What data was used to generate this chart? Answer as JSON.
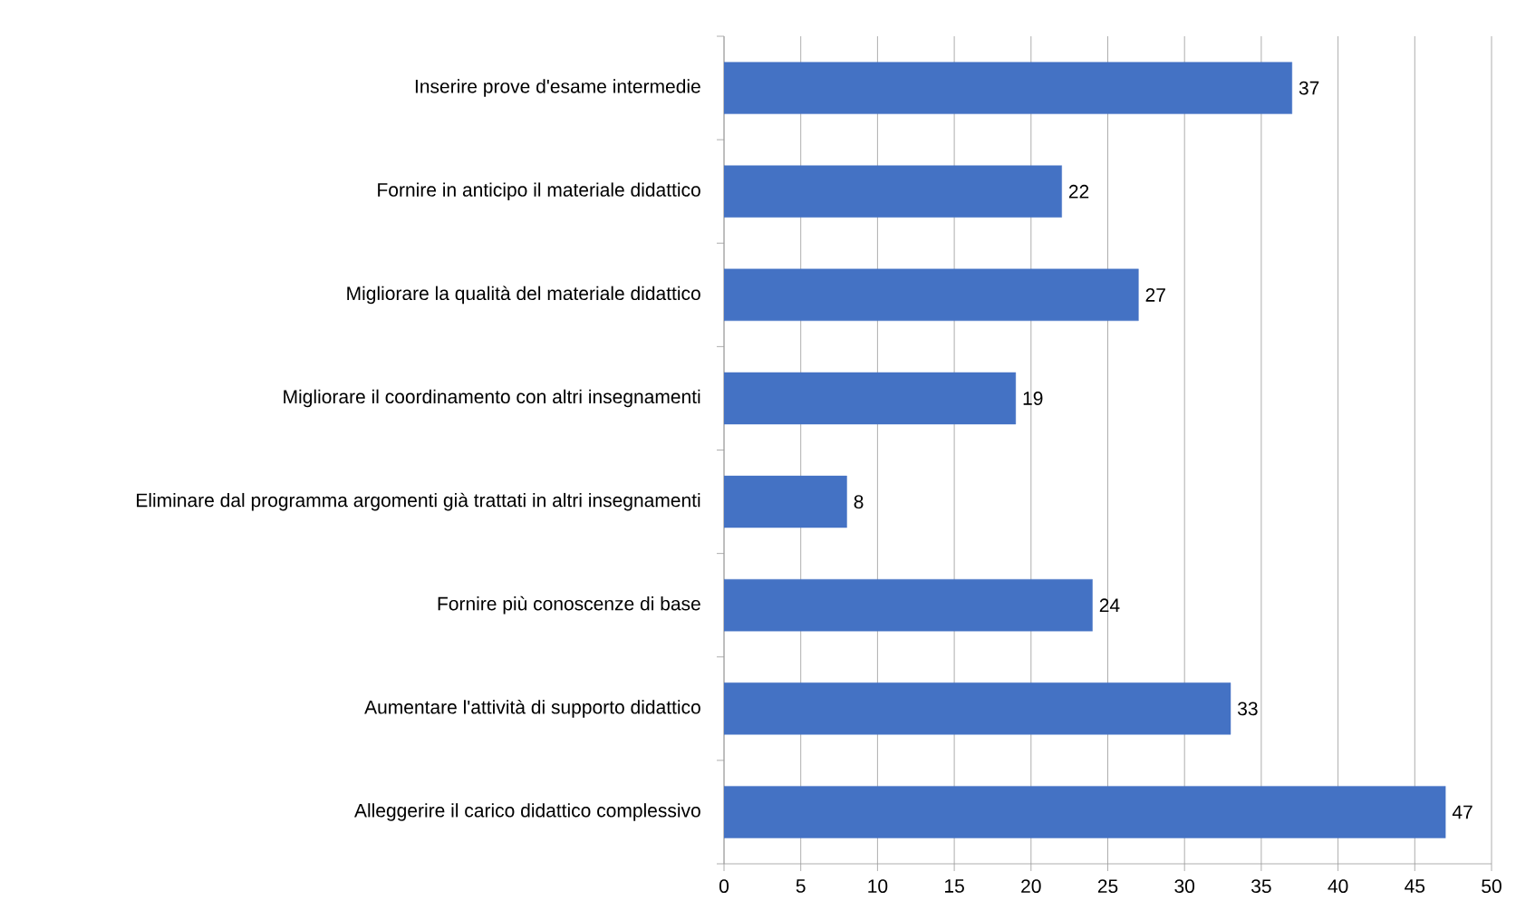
{
  "chart_data": {
    "type": "bar",
    "orientation": "horizontal",
    "categories": [
      "Inserire prove d'esame intermedie",
      "Fornire in anticipo il materiale didattico",
      "Migliorare la qualità del materiale didattico",
      "Migliorare il coordinamento con altri insegnamenti",
      "Eliminare dal programma argomenti già trattati in altri insegnamenti",
      "Fornire più conoscenze di base",
      "Aumentare l'attività di supporto didattico",
      "Alleggerire il carico didattico complessivo"
    ],
    "values": [
      37,
      22,
      27,
      19,
      8,
      24,
      33,
      47
    ],
    "color": "#4472c4",
    "xlim": [
      0,
      50
    ],
    "xticks": [
      0,
      5,
      10,
      15,
      20,
      25,
      30,
      35,
      40,
      45,
      50
    ],
    "grid": "x",
    "data_labels": true
  }
}
